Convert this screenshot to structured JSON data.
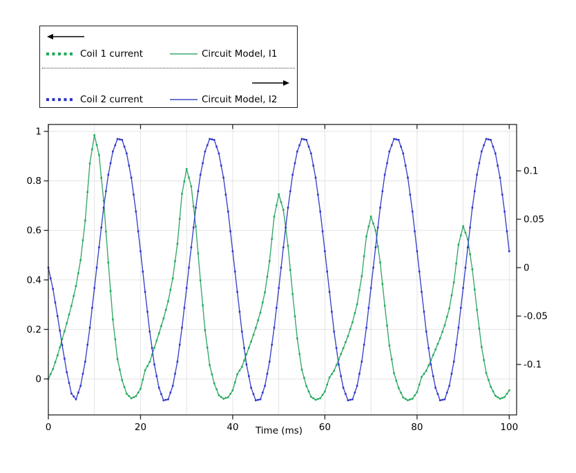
{
  "legend": {
    "entries": [
      {
        "label": "Coil 1 current",
        "style": "dotted",
        "color": "#1cab57"
      },
      {
        "label": "Circuit Model, I1",
        "style": "solid",
        "color": "#3aa96b"
      },
      {
        "label": "Coil 2 current",
        "style": "dotted",
        "color": "#2c34c7"
      },
      {
        "label": "Circuit Model, I2",
        "style": "solid",
        "color": "#3b46c9"
      }
    ],
    "left_arrow_icon": "arrow-left",
    "right_arrow_icon": "arrow-right"
  },
  "chart_data": {
    "type": "line",
    "title": "",
    "xlabel": "Time (ms)",
    "ylabel_left": "",
    "ylabel_right": "",
    "x_range": [
      0,
      101.6
    ],
    "left_axis": {
      "range": [
        -0.1453,
        1.0279
      ],
      "ticks": [
        0,
        0.2,
        0.4,
        0.6,
        0.8,
        1
      ],
      "tick_labels": [
        "0",
        "0.2",
        "0.4",
        "0.6",
        "0.8",
        "1"
      ]
    },
    "right_axis": {
      "range": [
        -0.1521,
        0.1479
      ],
      "ticks": [
        -0.1,
        -0.05,
        0,
        0.05,
        0.1
      ],
      "tick_labels": [
        "-0.1",
        "-0.05",
        "0",
        "0.05",
        "0.1"
      ]
    },
    "x_ticks": [
      0,
      20,
      40,
      60,
      80,
      100
    ],
    "x_tick_labels": [
      "0",
      "20",
      "40",
      "60",
      "80",
      "100"
    ],
    "x_gridlines": [
      10,
      20,
      30,
      40,
      50,
      60,
      70,
      80,
      90,
      100
    ],
    "grid": true,
    "grid_color": "#e3e3e3",
    "axis_color": "#222222",
    "legend_position": "top-left",
    "x": [
      0,
      1,
      2,
      3,
      4,
      5,
      6,
      7,
      8,
      9,
      10,
      11,
      12,
      13,
      14,
      15,
      16,
      17,
      18,
      19,
      20,
      21,
      22,
      23,
      24,
      25,
      26,
      27,
      28,
      29,
      30,
      31,
      32,
      33,
      34,
      35,
      36,
      37,
      38,
      39,
      40,
      41,
      42,
      43,
      44,
      45,
      46,
      47,
      48,
      49,
      50,
      51,
      52,
      53,
      54,
      55,
      56,
      57,
      58,
      59,
      60,
      61,
      62,
      63,
      64,
      65,
      66,
      67,
      68,
      69,
      70,
      71,
      72,
      73,
      74,
      75,
      76,
      77,
      78,
      79,
      80,
      81,
      82,
      83,
      84,
      85,
      86,
      87,
      88,
      89,
      90,
      91,
      92,
      93,
      94,
      95,
      96,
      97,
      98,
      99,
      100
    ],
    "series": [
      {
        "name": "Coil 1 current",
        "axis": "left",
        "style": "dotted",
        "color": "#1cab57",
        "values_key": "coil1"
      },
      {
        "name": "Circuit Model, I1",
        "axis": "left",
        "style": "solid",
        "color": "#3aa96b",
        "values_key": "coil1"
      },
      {
        "name": "Coil 2 current",
        "axis": "right",
        "style": "dotted",
        "color": "#2c34c7",
        "values_key": "coil2"
      },
      {
        "name": "Circuit Model, I2",
        "axis": "right",
        "style": "solid",
        "color": "#3b46c9",
        "values_key": "coil2"
      }
    ],
    "values": {
      "coil1": [
        0.0,
        0.04,
        0.095,
        0.16,
        0.225,
        0.295,
        0.375,
        0.48,
        0.64,
        0.87,
        0.985,
        0.905,
        0.72,
        0.47,
        0.24,
        0.08,
        -0.005,
        -0.06,
        -0.078,
        -0.07,
        -0.04,
        0.035,
        0.069,
        0.126,
        0.184,
        0.244,
        0.314,
        0.406,
        0.546,
        0.748,
        0.848,
        0.778,
        0.616,
        0.398,
        0.197,
        0.056,
        -0.018,
        -0.066,
        -0.08,
        -0.074,
        -0.046,
        0.019,
        0.049,
        0.1,
        0.151,
        0.206,
        0.268,
        0.35,
        0.476,
        0.656,
        0.746,
        0.683,
        0.538,
        0.343,
        0.163,
        0.038,
        -0.029,
        -0.072,
        -0.084,
        -0.078,
        -0.051,
        0.006,
        0.033,
        0.078,
        0.124,
        0.173,
        0.229,
        0.302,
        0.415,
        0.576,
        0.656,
        0.6,
        0.471,
        0.296,
        0.135,
        0.023,
        -0.037,
        -0.075,
        -0.086,
        -0.08,
        -0.053,
        0.008,
        0.033,
        0.075,
        0.119,
        0.164,
        0.217,
        0.285,
        0.39,
        0.542,
        0.617,
        0.564,
        0.443,
        0.279,
        0.129,
        0.024,
        -0.032,
        -0.068,
        -0.08,
        -0.073,
        -0.046
      ],
      "coil2": [
        0.0,
        -0.022,
        -0.05,
        -0.08,
        -0.108,
        -0.13,
        -0.136,
        -0.122,
        -0.097,
        -0.062,
        -0.021,
        0.021,
        0.062,
        0.096,
        0.12,
        0.133,
        0.132,
        0.118,
        0.093,
        0.058,
        0.017,
        -0.025,
        -0.066,
        -0.1,
        -0.124,
        -0.137,
        -0.136,
        -0.122,
        -0.097,
        -0.062,
        -0.021,
        0.021,
        0.062,
        0.096,
        0.12,
        0.133,
        0.132,
        0.118,
        0.093,
        0.058,
        0.017,
        -0.025,
        -0.066,
        -0.1,
        -0.124,
        -0.137,
        -0.136,
        -0.122,
        -0.097,
        -0.062,
        -0.021,
        0.021,
        0.062,
        0.096,
        0.12,
        0.133,
        0.132,
        0.118,
        0.093,
        0.058,
        0.017,
        -0.025,
        -0.066,
        -0.1,
        -0.124,
        -0.137,
        -0.136,
        -0.122,
        -0.097,
        -0.062,
        -0.021,
        0.021,
        0.062,
        0.096,
        0.12,
        0.133,
        0.132,
        0.118,
        0.093,
        0.058,
        0.017,
        -0.025,
        -0.066,
        -0.1,
        -0.124,
        -0.137,
        -0.136,
        -0.122,
        -0.097,
        -0.062,
        -0.021,
        0.021,
        0.062,
        0.096,
        0.12,
        0.133,
        0.132,
        0.118,
        0.093,
        0.058,
        0.017
      ]
    }
  }
}
